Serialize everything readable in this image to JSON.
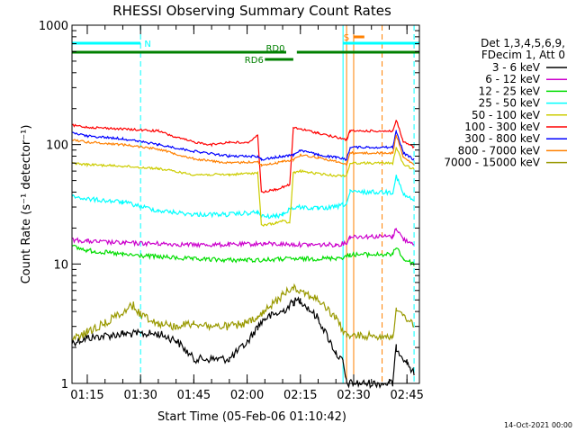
{
  "chart_data": {
    "type": "line",
    "title": "RHESSI Observing Summary Count Rates",
    "xlabel": "Start Time (05-Feb-06 01:10:42)",
    "ylabel": "Count Rate",
    "ylabel_units": "(s⁻¹ detector⁻¹)",
    "y_scale": "log",
    "ylim": [
      1,
      1000
    ],
    "y_ticks": [
      "1",
      "10",
      "100",
      "1000"
    ],
    "xlim": [
      "01:10:42",
      "02:48:30"
    ],
    "x_ticks": [
      "01:15",
      "01:30",
      "01:45",
      "02:00",
      "02:15",
      "02:30",
      "02:45"
    ],
    "timestamp": "14-Oct-2021 00:00",
    "legend_position": "right",
    "legend_header": [
      "Det 1,3,4,5,6,9,",
      "FDecim 1, Att 0"
    ],
    "series": [
      {
        "name": "3 - 6 keV",
        "color": "#000000",
        "points": [
          [
            "01:10:42",
            2.2
          ],
          [
            "01:15",
            2.4
          ],
          [
            "01:25",
            2.6
          ],
          [
            "01:35",
            2.6
          ],
          [
            "01:40",
            2.3
          ],
          [
            "01:45",
            1.6
          ],
          [
            "01:55",
            1.6
          ],
          [
            "02:00",
            2.2
          ],
          [
            "02:03",
            3.0
          ],
          [
            "02:05",
            3.5
          ],
          [
            "02:10",
            4.0
          ],
          [
            "02:13",
            4.8
          ],
          [
            "02:15",
            5.0
          ],
          [
            "02:20",
            3.5
          ],
          [
            "02:25",
            1.8
          ],
          [
            "02:27",
            1.5
          ],
          [
            "02:28",
            1.0
          ],
          [
            "02:41",
            1.0
          ],
          [
            "02:42",
            2.0
          ],
          [
            "02:45",
            1.5
          ],
          [
            "02:47",
            1.2
          ]
        ]
      },
      {
        "name": "6 - 12 keV",
        "color": "#cc00cc",
        "points": [
          [
            "01:10:42",
            16
          ],
          [
            "01:15",
            15.5
          ],
          [
            "01:25",
            15
          ],
          [
            "01:35",
            14.8
          ],
          [
            "01:45",
            14.5
          ],
          [
            "01:55",
            14.5
          ],
          [
            "02:05",
            14.8
          ],
          [
            "02:15",
            14.5
          ],
          [
            "02:25",
            14.5
          ],
          [
            "02:28",
            15
          ],
          [
            "02:29",
            17
          ],
          [
            "02:41",
            17
          ],
          [
            "02:42",
            20
          ],
          [
            "02:44",
            16
          ],
          [
            "02:47",
            15
          ]
        ]
      },
      {
        "name": "12 - 25 keV",
        "color": "#00dd00",
        "points": [
          [
            "01:10:42",
            14
          ],
          [
            "01:15",
            13
          ],
          [
            "01:25",
            12
          ],
          [
            "01:35",
            11.5
          ],
          [
            "01:45",
            11
          ],
          [
            "01:55",
            10.8
          ],
          [
            "02:00",
            10.8
          ],
          [
            "02:05",
            10.8
          ],
          [
            "02:10",
            11
          ],
          [
            "02:15",
            11
          ],
          [
            "02:25",
            11.2
          ],
          [
            "02:28",
            11.5
          ],
          [
            "02:29",
            12
          ],
          [
            "02:41",
            12
          ],
          [
            "02:42",
            14
          ],
          [
            "02:44",
            11
          ],
          [
            "02:47",
            10
          ]
        ]
      },
      {
        "name": "25 - 50 keV",
        "color": "#00ffff",
        "points": [
          [
            "01:10:42",
            37
          ],
          [
            "01:15",
            35
          ],
          [
            "01:25",
            33
          ],
          [
            "01:35",
            28
          ],
          [
            "01:45",
            26
          ],
          [
            "01:55",
            26
          ],
          [
            "02:03",
            27
          ],
          [
            "02:04",
            25
          ],
          [
            "02:08",
            25
          ],
          [
            "02:10",
            26
          ],
          [
            "02:12",
            29
          ],
          [
            "02:15",
            30
          ],
          [
            "02:20",
            29
          ],
          [
            "02:25",
            30
          ],
          [
            "02:28",
            32
          ],
          [
            "02:29",
            40
          ],
          [
            "02:41",
            40
          ],
          [
            "02:42",
            55
          ],
          [
            "02:44",
            38
          ],
          [
            "02:47",
            34
          ]
        ]
      },
      {
        "name": "50 - 100 keV",
        "color": "#cccc00",
        "points": [
          [
            "01:10:42",
            70
          ],
          [
            "01:15",
            68
          ],
          [
            "01:25",
            66
          ],
          [
            "01:35",
            63
          ],
          [
            "01:45",
            56
          ],
          [
            "01:55",
            56
          ],
          [
            "02:03",
            58
          ],
          [
            "02:04",
            21
          ],
          [
            "02:08",
            22
          ],
          [
            "02:10",
            23
          ],
          [
            "02:12",
            22
          ],
          [
            "02:13",
            58
          ],
          [
            "02:15",
            60
          ],
          [
            "02:20",
            57
          ],
          [
            "02:25",
            55
          ],
          [
            "02:28",
            55
          ],
          [
            "02:29",
            70
          ],
          [
            "02:41",
            70
          ],
          [
            "02:42",
            95
          ],
          [
            "02:44",
            68
          ],
          [
            "02:47",
            62
          ]
        ]
      },
      {
        "name": "100 - 300 keV",
        "color": "#ff0000",
        "points": [
          [
            "01:10:42",
            145
          ],
          [
            "01:15",
            140
          ],
          [
            "01:25",
            135
          ],
          [
            "01:35",
            130
          ],
          [
            "01:40",
            115
          ],
          [
            "01:45",
            105
          ],
          [
            "01:50",
            100
          ],
          [
            "01:55",
            105
          ],
          [
            "02:00",
            103
          ],
          [
            "02:03",
            120
          ],
          [
            "02:04",
            40
          ],
          [
            "02:08",
            42
          ],
          [
            "02:10",
            44
          ],
          [
            "02:12",
            46
          ],
          [
            "02:13",
            138
          ],
          [
            "02:15",
            135
          ],
          [
            "02:20",
            125
          ],
          [
            "02:25",
            115
          ],
          [
            "02:28",
            110
          ],
          [
            "02:29",
            130
          ],
          [
            "02:41",
            130
          ],
          [
            "02:42",
            160
          ],
          [
            "02:44",
            105
          ],
          [
            "02:47",
            95
          ]
        ]
      },
      {
        "name": "300 - 800 keV",
        "color": "#0000ff",
        "points": [
          [
            "01:10:42",
            125
          ],
          [
            "01:15",
            118
          ],
          [
            "01:25",
            112
          ],
          [
            "01:35",
            100
          ],
          [
            "01:45",
            88
          ],
          [
            "01:55",
            80
          ],
          [
            "02:03",
            80
          ],
          [
            "02:04",
            75
          ],
          [
            "02:08",
            78
          ],
          [
            "02:10",
            80
          ],
          [
            "02:13",
            82
          ],
          [
            "02:15",
            90
          ],
          [
            "02:20",
            82
          ],
          [
            "02:25",
            78
          ],
          [
            "02:28",
            75
          ],
          [
            "02:29",
            95
          ],
          [
            "02:41",
            95
          ],
          [
            "02:42",
            130
          ],
          [
            "02:44",
            85
          ],
          [
            "02:47",
            75
          ]
        ]
      },
      {
        "name": "800 - 7000 keV",
        "color": "#ff8000",
        "points": [
          [
            "01:10:42",
            110
          ],
          [
            "01:15",
            105
          ],
          [
            "01:25",
            100
          ],
          [
            "01:35",
            92
          ],
          [
            "01:45",
            76
          ],
          [
            "01:55",
            70
          ],
          [
            "02:03",
            72
          ],
          [
            "02:04",
            67
          ],
          [
            "02:08",
            70
          ],
          [
            "02:10",
            72
          ],
          [
            "02:13",
            75
          ],
          [
            "02:15",
            82
          ],
          [
            "02:20",
            78
          ],
          [
            "02:25",
            72
          ],
          [
            "02:28",
            68
          ],
          [
            "02:29",
            85
          ],
          [
            "02:41",
            85
          ],
          [
            "02:42",
            120
          ],
          [
            "02:44",
            78
          ],
          [
            "02:47",
            68
          ]
        ]
      },
      {
        "name": "7000 - 15000 keV",
        "color": "#999900",
        "points": [
          [
            "01:10:42",
            2.3
          ],
          [
            "01:15",
            2.7
          ],
          [
            "01:20",
            3.2
          ],
          [
            "01:25",
            4.0
          ],
          [
            "01:28",
            4.5
          ],
          [
            "01:30",
            3.8
          ],
          [
            "01:35",
            3.2
          ],
          [
            "01:40",
            3.0
          ],
          [
            "01:45",
            3.2
          ],
          [
            "01:50",
            3.0
          ],
          [
            "01:55",
            3.0
          ],
          [
            "02:00",
            3.2
          ],
          [
            "02:03",
            3.5
          ],
          [
            "02:05",
            4.0
          ],
          [
            "02:10",
            5.5
          ],
          [
            "02:13",
            6.5
          ],
          [
            "02:15",
            6.0
          ],
          [
            "02:20",
            5.0
          ],
          [
            "02:25",
            3.5
          ],
          [
            "02:28",
            2.5
          ],
          [
            "02:41",
            2.5
          ],
          [
            "02:42",
            4.0
          ],
          [
            "02:45",
            3.5
          ],
          [
            "02:47",
            3.0
          ]
        ]
      }
    ],
    "status_bars": [
      {
        "label": "N",
        "color": "#00ffff",
        "level": "top",
        "segments": [
          [
            "01:10:42",
            "01:30"
          ],
          [
            "02:27",
            "02:48:30"
          ]
        ]
      },
      {
        "label": "S",
        "color": "#ff8000",
        "level": "top",
        "segments": [
          [
            "02:30",
            "02:33"
          ]
        ]
      },
      {
        "label": "RD0",
        "color": "#008000",
        "level": "middle",
        "segments": [
          [
            "01:10:42",
            "02:11"
          ],
          [
            "02:14",
            "02:48:30"
          ]
        ]
      },
      {
        "label": "RD6",
        "color": "#008000",
        "level": "lower",
        "segments": [
          [
            "02:05",
            "02:13"
          ]
        ]
      }
    ],
    "vertical_markers": [
      {
        "time": "01:30",
        "color": "#00ffff",
        "style": "dashed"
      },
      {
        "time": "02:27",
        "color": "#00ffff",
        "style": "solid"
      },
      {
        "time": "02:28",
        "color": "#ff8000",
        "style": "solid"
      },
      {
        "time": "02:30",
        "color": "#ff8000",
        "style": "solid"
      },
      {
        "time": "02:38",
        "color": "#ff8000",
        "style": "dashed"
      },
      {
        "time": "02:47",
        "color": "#00ffff",
        "style": "dashed"
      },
      {
        "time": "01:10:42",
        "color": "#00ffff",
        "style": "solid"
      }
    ]
  }
}
